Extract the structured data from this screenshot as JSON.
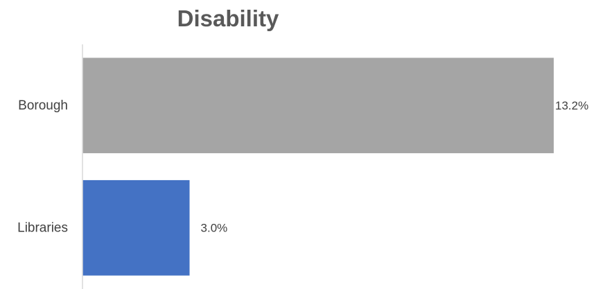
{
  "chart_data": {
    "type": "bar",
    "orientation": "horizontal",
    "title": "Disability",
    "categories": [
      "Borough",
      "Libraries"
    ],
    "values": [
      13.2,
      3.0
    ],
    "data_labels": [
      "13.2%",
      "3.0%"
    ],
    "colors": [
      "#a5a5a5",
      "#4472c4"
    ],
    "axis_color": "#d9d9d9",
    "xlim": [
      0,
      13.2
    ],
    "grid": false,
    "legend": "none"
  }
}
